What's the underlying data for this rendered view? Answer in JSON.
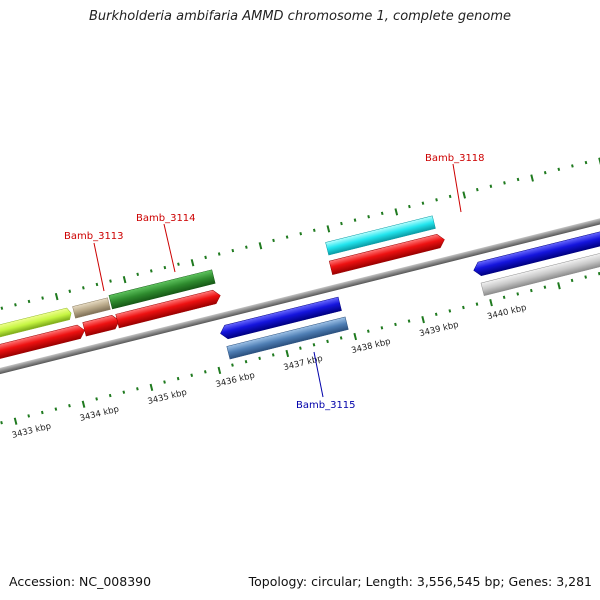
{
  "title": "Burkholderia ambifaria AMMD chromosome 1, complete genome",
  "footer": {
    "accession": "Accession: NC_008390",
    "topology": "Topology: circular; Length: 3,556,545 bp; Genes: 3,281"
  },
  "colors": {
    "backbone": "#8a8a8a",
    "tick": "#1f7a1f",
    "label_forward": "#cc0000",
    "label_reverse": "#0000aa"
  },
  "scale": {
    "unit": "kbp",
    "labels": [
      "3433 kbp",
      "3434 kbp",
      "3435 kbp",
      "3436 kbp",
      "3437 kbp",
      "3438 kbp",
      "3439 kbp",
      "3440 kbp"
    ]
  },
  "gene_labels": [
    "Bamb_3113",
    "Bamb_3114",
    "Bamb_3118",
    "Bamb_3115"
  ],
  "feature_colors": [
    "#c6f542",
    "#b8a888",
    "#2e8b2e",
    "#ee1111",
    "#1515dd",
    "#4f7fb5",
    "#22e5ee",
    "#c8c8c8"
  ]
}
